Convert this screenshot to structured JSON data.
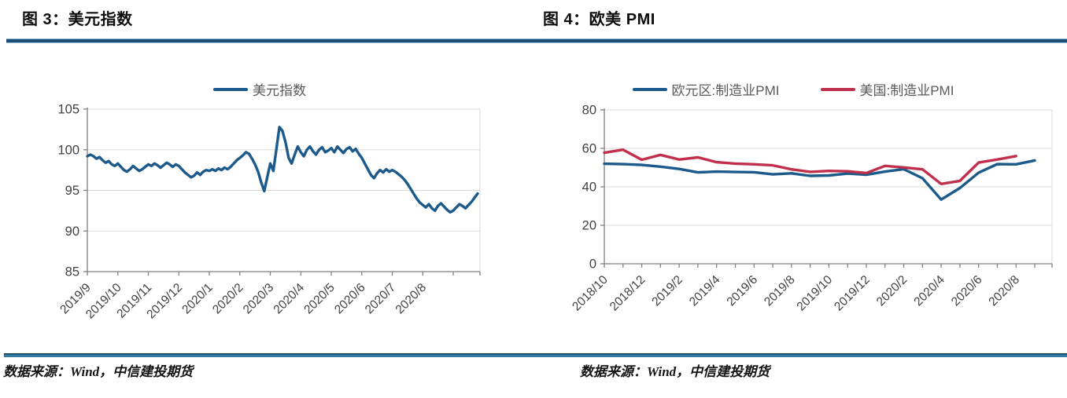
{
  "figures": [
    {
      "title": "图 3：美元指数",
      "source": "数据来源：Wind，中信建投期货"
    },
    {
      "title": "图 4：欧美 PMI",
      "source": "数据来源：Wind，中信建投期货"
    }
  ],
  "colors": {
    "header_rule": "#1F4E79",
    "footer_rule": "#2E7BA6",
    "grid": "#D9D9D9",
    "axis": "#7F7F7F",
    "tick_label": "#404040",
    "legend_text": "#595959",
    "series_blue": "#1B5A8A",
    "series_red": "#C0304D"
  },
  "chart_data": [
    {
      "type": "line",
      "title": "美元指数",
      "legend_position": "top",
      "grid": "horizontal",
      "ylim": [
        85,
        105
      ],
      "y_ticks": [
        85,
        90,
        95,
        100,
        105
      ],
      "x_tick_positions": [
        0,
        10,
        20,
        30,
        40,
        50,
        60,
        70,
        80,
        90,
        100,
        110,
        120
      ],
      "x_tick_labels": [
        "2019/9",
        "2019/10",
        "2019/11",
        "2019/12",
        "2020/1",
        "2020/2",
        "2020/3",
        "2020/4",
        "2020/5",
        "2020/6",
        "2020/7",
        "2020/8",
        ""
      ],
      "series": [
        {
          "name": "美元指数",
          "color": "#1B5A8A",
          "values": [
            99.2,
            99.4,
            99.2,
            98.9,
            99.1,
            98.7,
            98.4,
            98.6,
            98.2,
            98.0,
            98.3,
            97.9,
            97.5,
            97.3,
            97.6,
            98.0,
            97.7,
            97.4,
            97.6,
            97.9,
            98.2,
            98.0,
            98.3,
            98.1,
            97.8,
            98.1,
            98.4,
            98.2,
            97.9,
            98.2,
            98.0,
            97.6,
            97.2,
            96.9,
            96.6,
            96.8,
            97.2,
            96.9,
            97.3,
            97.5,
            97.4,
            97.6,
            97.4,
            97.7,
            97.5,
            97.8,
            97.6,
            97.9,
            98.3,
            98.7,
            99.0,
            99.3,
            99.7,
            99.5,
            98.9,
            98.2,
            97.3,
            96.0,
            94.9,
            96.6,
            98.3,
            97.4,
            100.1,
            102.8,
            102.3,
            100.9,
            99.0,
            98.3,
            99.4,
            100.4,
            99.7,
            99.2,
            100.0,
            100.4,
            99.8,
            99.4,
            100.0,
            100.3,
            99.7,
            99.9,
            100.2,
            99.7,
            100.4,
            100.0,
            99.6,
            100.1,
            100.3,
            99.8,
            100.1,
            99.5,
            99.0,
            98.3,
            97.6,
            96.9,
            96.5,
            97.1,
            97.5,
            97.2,
            97.6,
            97.3,
            97.5,
            97.3,
            97.0,
            96.7,
            96.3,
            95.8,
            95.2,
            94.6,
            94.0,
            93.5,
            93.2,
            92.9,
            93.3,
            92.8,
            92.5,
            93.1,
            93.4,
            93.0,
            92.6,
            92.3,
            92.5,
            92.9,
            93.3,
            93.1,
            92.8,
            93.2,
            93.6,
            94.1,
            94.6
          ]
        }
      ]
    },
    {
      "type": "line",
      "title": "欧美PMI",
      "legend_position": "top",
      "grid": "horizontal",
      "ylim": [
        0,
        80
      ],
      "y_ticks": [
        0,
        20,
        40,
        60,
        80
      ],
      "categories": [
        "2018/10",
        "2018/11",
        "2018/12",
        "2019/1",
        "2019/2",
        "2019/3",
        "2019/4",
        "2019/5",
        "2019/6",
        "2019/7",
        "2019/8",
        "2019/9",
        "2019/10",
        "2019/11",
        "2019/12",
        "2020/1",
        "2020/2",
        "2020/3",
        "2020/4",
        "2020/5",
        "2020/6",
        "2020/7",
        "2020/8",
        "2020/9"
      ],
      "x_tick_positions": [
        0,
        1,
        2,
        3,
        4,
        5,
        6,
        7,
        8,
        9,
        10,
        11,
        12,
        13,
        14,
        15,
        16,
        17,
        18,
        19,
        20,
        21,
        22,
        23
      ],
      "x_tick_labels": [
        "2018/10",
        "",
        "2018/12",
        "",
        "2019/2",
        "",
        "2019/4",
        "",
        "2019/6",
        "",
        "2019/8",
        "",
        "2019/10",
        "",
        "2019/12",
        "",
        "2020/2",
        "",
        "2020/4",
        "",
        "2020/6",
        "",
        "2020/8",
        ""
      ],
      "series": [
        {
          "name": "欧元区:制造业PMI",
          "color": "#1B5A8A",
          "values": [
            52.0,
            51.8,
            51.4,
            50.5,
            49.3,
            47.5,
            47.9,
            47.7,
            47.6,
            46.5,
            47.0,
            45.7,
            45.9,
            46.9,
            46.3,
            47.9,
            49.2,
            44.5,
            33.4,
            39.4,
            47.4,
            51.8,
            51.7,
            53.7
          ]
        },
        {
          "name": "美国:制造业PMI",
          "color": "#C0304D",
          "values": [
            57.7,
            59.3,
            54.1,
            56.6,
            54.2,
            55.3,
            52.8,
            52.1,
            51.7,
            51.2,
            49.1,
            47.8,
            48.3,
            48.1,
            47.2,
            50.9,
            50.1,
            49.1,
            41.5,
            43.1,
            52.6,
            54.2,
            56.0
          ]
        }
      ]
    }
  ]
}
